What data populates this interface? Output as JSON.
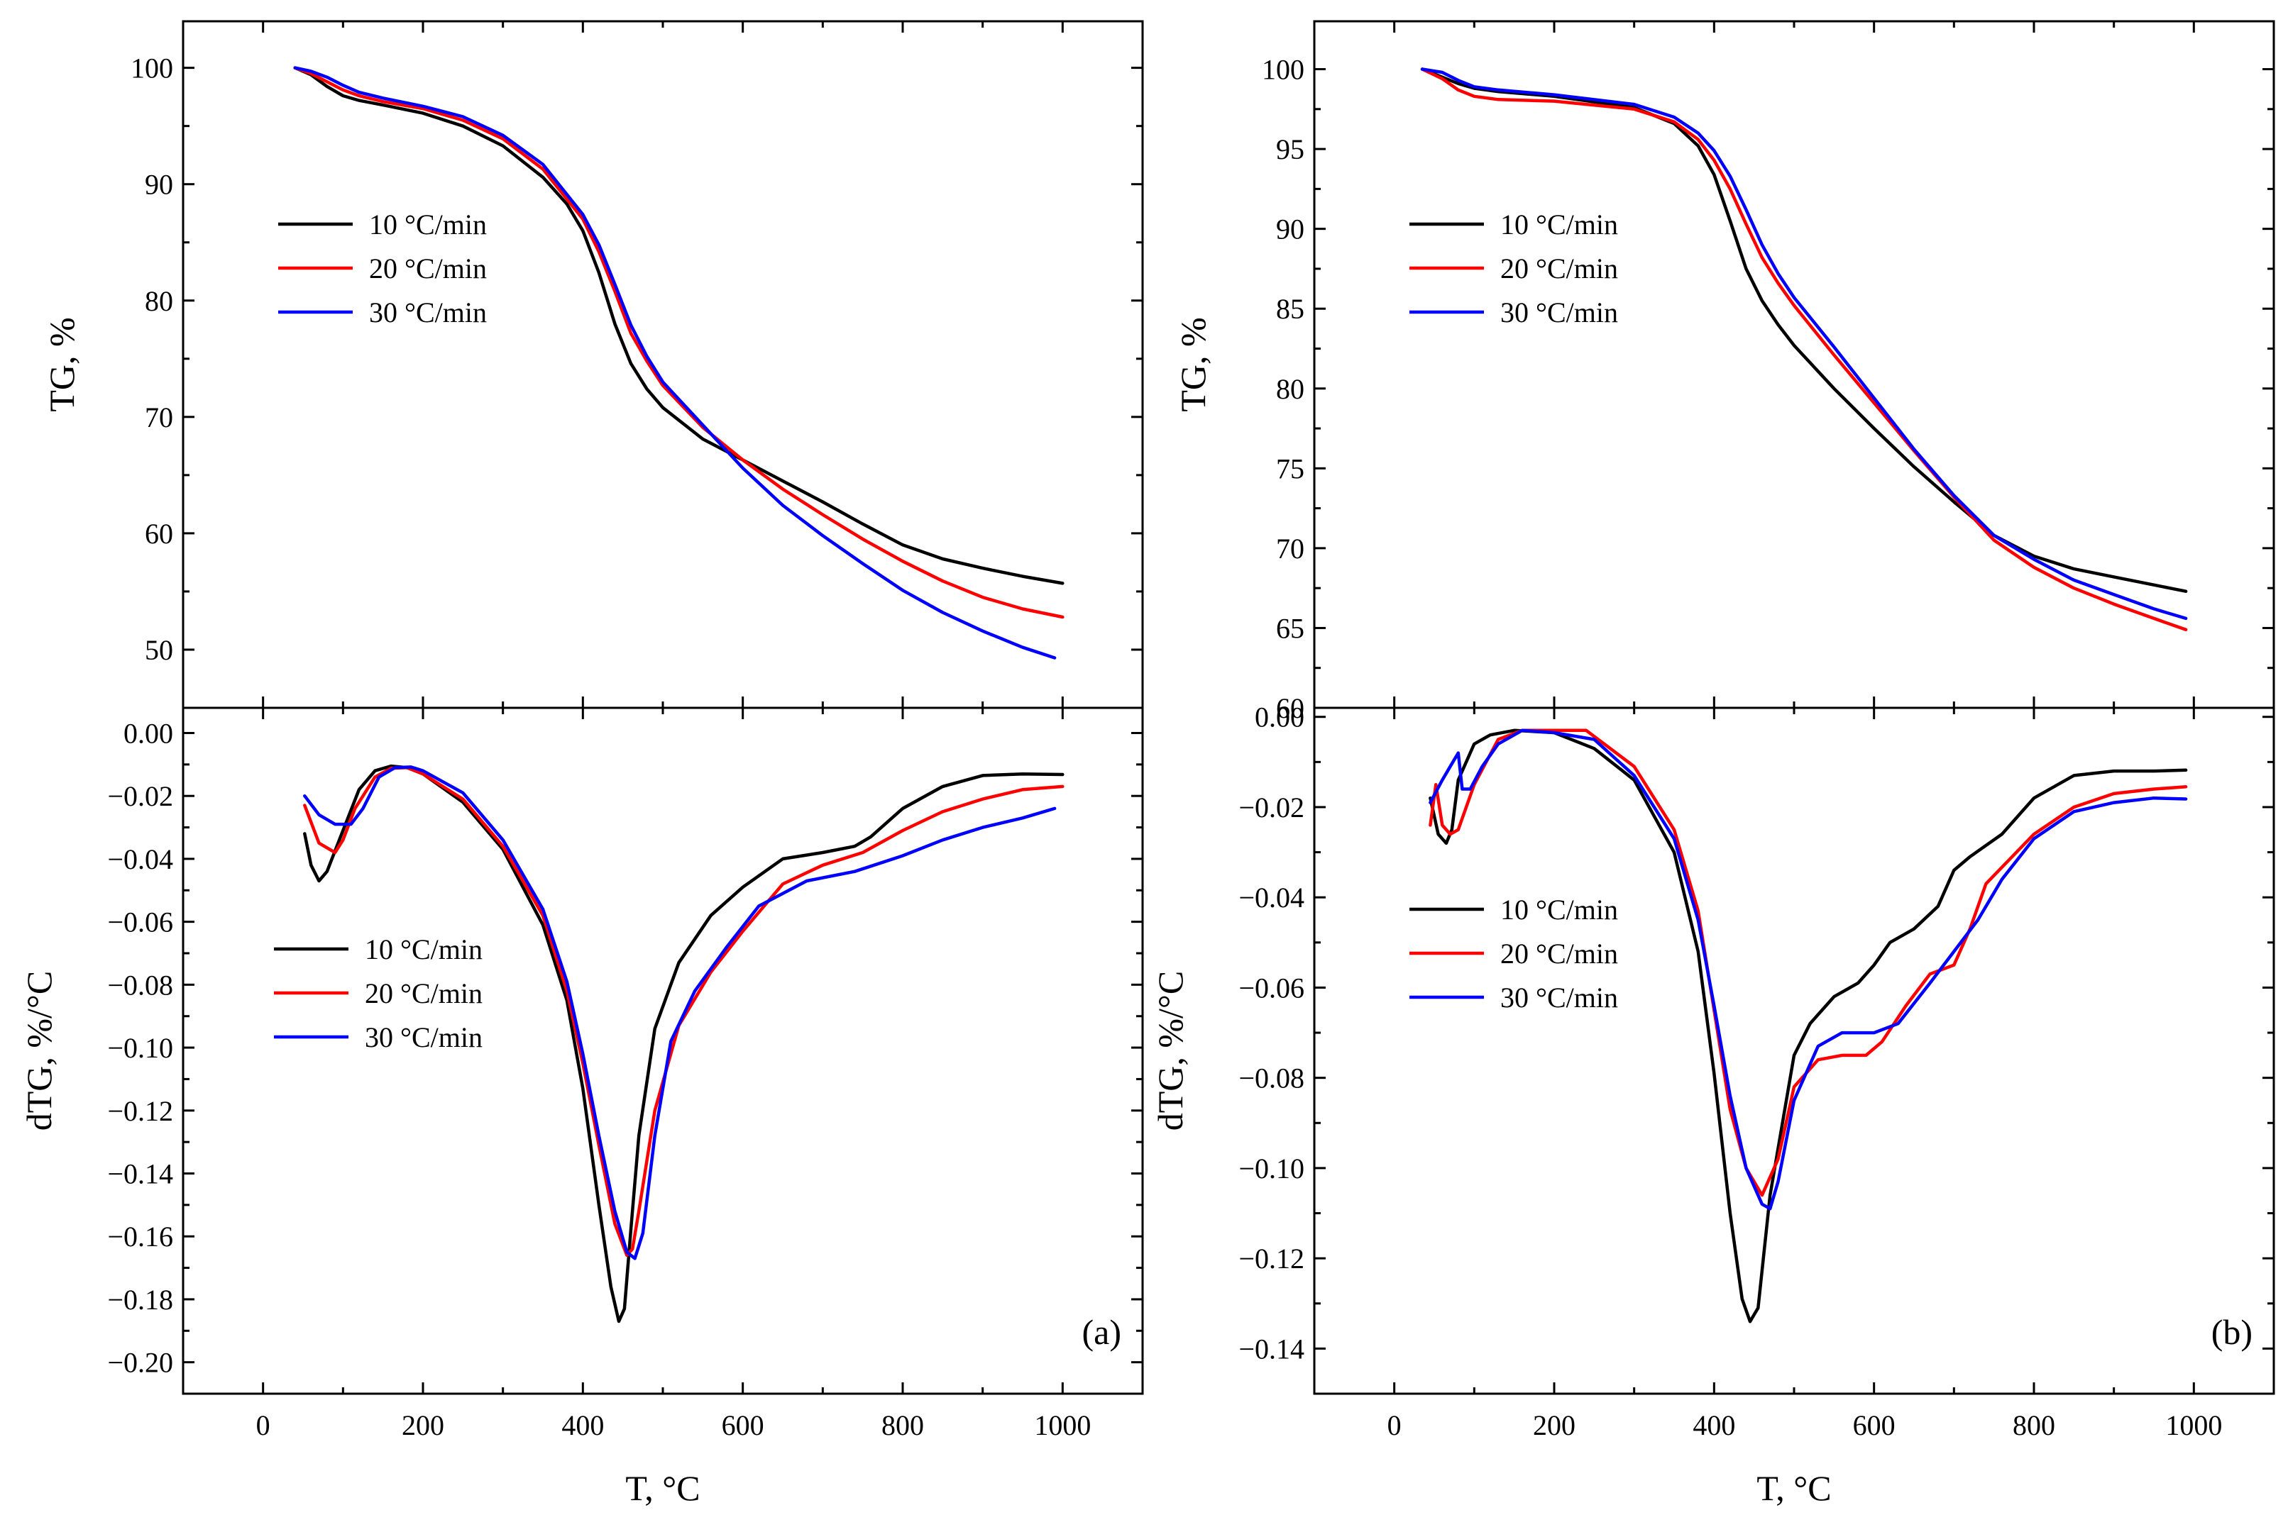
{
  "colors": {
    "s10": "#000000",
    "s20": "#ff0000",
    "s30": "#0000ff"
  },
  "chart_data": [
    {
      "panel": "a-top",
      "type": "line",
      "title": "",
      "xlabel": "",
      "ylabel": "TG, %",
      "xlim": [
        -100,
        1100
      ],
      "ylim": [
        45,
        104
      ],
      "xticks": [],
      "yticks": [
        50,
        60,
        70,
        80,
        90,
        100
      ],
      "legend_position": "upper-left",
      "panel_label": "",
      "series": [
        {
          "name": "10 °C/min",
          "color": "#000000",
          "x": [
            40,
            60,
            80,
            100,
            120,
            150,
            200,
            250,
            300,
            350,
            380,
            400,
            420,
            440,
            460,
            480,
            500,
            550,
            600,
            650,
            700,
            750,
            800,
            850,
            900,
            950,
            1000
          ],
          "y": [
            100,
            99.4,
            98.4,
            97.6,
            97.2,
            96.8,
            96.1,
            95,
            93.3,
            90.6,
            88.3,
            86,
            82.4,
            78,
            74.6,
            72.4,
            70.8,
            68.1,
            66.3,
            64.5,
            62.7,
            60.8,
            59,
            57.8,
            57,
            56.3,
            55.7
          ]
        },
        {
          "name": "20 °C/min",
          "color": "#ff0000",
          "x": [
            40,
            60,
            80,
            100,
            120,
            150,
            200,
            250,
            300,
            350,
            400,
            420,
            440,
            460,
            480,
            500,
            550,
            600,
            650,
            700,
            750,
            800,
            850,
            900,
            950,
            1000
          ],
          "y": [
            100,
            99.5,
            98.8,
            98.1,
            97.6,
            97.1,
            96.5,
            95.5,
            93.9,
            91.3,
            87,
            84.2,
            80.8,
            77.2,
            74.8,
            72.7,
            69.1,
            66.3,
            63.8,
            61.6,
            59.5,
            57.6,
            55.9,
            54.5,
            53.5,
            52.8
          ]
        },
        {
          "name": "30 °C/min",
          "color": "#0000ff",
          "x": [
            40,
            60,
            80,
            100,
            120,
            150,
            200,
            250,
            300,
            350,
            400,
            420,
            440,
            460,
            480,
            500,
            550,
            600,
            650,
            700,
            750,
            800,
            850,
            900,
            950,
            990
          ],
          "y": [
            100,
            99.7,
            99.2,
            98.5,
            97.9,
            97.4,
            96.7,
            95.8,
            94.2,
            91.7,
            87.4,
            84.8,
            81.4,
            77.9,
            75.2,
            73,
            69.3,
            65.6,
            62.4,
            59.8,
            57.4,
            55.1,
            53.2,
            51.6,
            50.2,
            49.3
          ]
        }
      ]
    },
    {
      "panel": "a-bottom",
      "type": "line",
      "title": "",
      "xlabel": "T, °C",
      "ylabel": "dTG, %/°C",
      "xlim": [
        -100,
        1100
      ],
      "ylim": [
        -0.21,
        0.008
      ],
      "xticks": [
        0,
        200,
        400,
        600,
        800,
        1000
      ],
      "yticks": [
        0.0,
        -0.02,
        -0.04,
        -0.06,
        -0.08,
        -0.1,
        -0.12,
        -0.14,
        -0.16,
        -0.18,
        -0.2
      ],
      "ytick_labels": [
        "0.00",
        "−0.02",
        "−0.04",
        "−0.06",
        "−0.08",
        "−0.10",
        "−0.12",
        "−0.14",
        "−0.16",
        "−0.18",
        "−0.20"
      ],
      "legend_position": "middle-left",
      "panel_label": "(a)",
      "series": [
        {
          "name": "10 °C/min",
          "color": "#000000",
          "x": [
            52,
            60,
            70,
            80,
            100,
            120,
            140,
            160,
            180,
            200,
            250,
            300,
            350,
            380,
            400,
            420,
            435,
            445,
            452,
            460,
            470,
            490,
            520,
            560,
            600,
            650,
            700,
            740,
            760,
            800,
            850,
            900,
            950,
            1000
          ],
          "y": [
            -0.032,
            -0.042,
            -0.047,
            -0.044,
            -0.031,
            -0.018,
            -0.012,
            -0.0105,
            -0.011,
            -0.013,
            -0.022,
            -0.037,
            -0.061,
            -0.085,
            -0.113,
            -0.15,
            -0.176,
            -0.187,
            -0.183,
            -0.158,
            -0.128,
            -0.094,
            -0.073,
            -0.058,
            -0.049,
            -0.04,
            -0.038,
            -0.036,
            -0.033,
            -0.024,
            -0.017,
            -0.0135,
            -0.013,
            -0.0132
          ]
        },
        {
          "name": "20 °C/min",
          "color": "#ff0000",
          "x": [
            52,
            70,
            90,
            100,
            115,
            140,
            160,
            180,
            200,
            250,
            300,
            350,
            380,
            400,
            420,
            440,
            455,
            462,
            470,
            490,
            520,
            560,
            600,
            650,
            700,
            750,
            800,
            850,
            900,
            950,
            1000
          ],
          "y": [
            -0.023,
            -0.035,
            -0.038,
            -0.034,
            -0.024,
            -0.014,
            -0.0112,
            -0.011,
            -0.013,
            -0.021,
            -0.036,
            -0.058,
            -0.082,
            -0.105,
            -0.131,
            -0.156,
            -0.166,
            -0.164,
            -0.152,
            -0.12,
            -0.093,
            -0.076,
            -0.063,
            -0.048,
            -0.042,
            -0.038,
            -0.031,
            -0.025,
            -0.021,
            -0.018,
            -0.017
          ]
        },
        {
          "name": "30 °C/min",
          "color": "#0000ff",
          "x": [
            52,
            70,
            90,
            110,
            125,
            145,
            165,
            185,
            200,
            250,
            300,
            350,
            380,
            400,
            420,
            440,
            455,
            465,
            475,
            490,
            510,
            540,
            580,
            620,
            680,
            740,
            800,
            850,
            900,
            950,
            990
          ],
          "y": [
            -0.02,
            -0.026,
            -0.029,
            -0.029,
            -0.024,
            -0.014,
            -0.011,
            -0.0108,
            -0.012,
            -0.019,
            -0.034,
            -0.056,
            -0.079,
            -0.102,
            -0.128,
            -0.152,
            -0.165,
            -0.167,
            -0.159,
            -0.128,
            -0.098,
            -0.082,
            -0.068,
            -0.055,
            -0.047,
            -0.044,
            -0.039,
            -0.034,
            -0.03,
            -0.027,
            -0.024
          ]
        }
      ]
    },
    {
      "panel": "b-top",
      "type": "line",
      "title": "",
      "xlabel": "",
      "ylabel": "TG, %",
      "xlim": [
        -100,
        1100
      ],
      "ylim": [
        60,
        103
      ],
      "xticks": [],
      "yticks": [
        60,
        65,
        70,
        75,
        80,
        85,
        90,
        95,
        100
      ],
      "legend_position": "upper-left",
      "panel_label": "",
      "series": [
        {
          "name": "10 °C/min",
          "color": "#000000",
          "x": [
            35,
            60,
            80,
            100,
            130,
            200,
            300,
            350,
            380,
            400,
            420,
            440,
            460,
            480,
            500,
            550,
            600,
            650,
            700,
            750,
            800,
            850,
            900,
            950,
            990
          ],
          "y": [
            100,
            99.5,
            99.1,
            98.8,
            98.6,
            98.3,
            97.6,
            96.6,
            95.2,
            93.4,
            90.5,
            87.5,
            85.5,
            84,
            82.7,
            80,
            77.5,
            75.1,
            72.9,
            70.8,
            69.5,
            68.7,
            68.2,
            67.7,
            67.3
          ]
        },
        {
          "name": "20 °C/min",
          "color": "#ff0000",
          "x": [
            35,
            60,
            80,
            100,
            130,
            200,
            300,
            350,
            380,
            400,
            420,
            440,
            460,
            480,
            500,
            550,
            600,
            650,
            700,
            750,
            800,
            850,
            900,
            950,
            990
          ],
          "y": [
            100,
            99.4,
            98.7,
            98.3,
            98.1,
            98,
            97.5,
            96.7,
            95.6,
            94.3,
            92.5,
            90.3,
            88.2,
            86.6,
            85.2,
            82.1,
            79.1,
            76.1,
            73.2,
            70.5,
            68.8,
            67.5,
            66.5,
            65.6,
            64.9
          ]
        },
        {
          "name": "30 °C/min",
          "color": "#0000ff",
          "x": [
            35,
            60,
            80,
            100,
            130,
            200,
            300,
            350,
            380,
            400,
            420,
            440,
            460,
            480,
            500,
            550,
            600,
            650,
            700,
            750,
            800,
            850,
            900,
            950,
            990
          ],
          "y": [
            100,
            99.8,
            99.3,
            98.9,
            98.7,
            98.4,
            97.8,
            97,
            96,
            94.9,
            93.3,
            91.2,
            89,
            87.2,
            85.7,
            82.6,
            79.4,
            76.2,
            73.3,
            70.8,
            69.3,
            68,
            67.1,
            66.2,
            65.6
          ]
        }
      ]
    },
    {
      "panel": "b-bottom",
      "type": "line",
      "title": "",
      "xlabel": "T, °C",
      "ylabel": "dTG, %/°C",
      "xlim": [
        -100,
        1100
      ],
      "ylim": [
        -0.15,
        0.002
      ],
      "xticks": [
        0,
        200,
        400,
        600,
        800,
        1000
      ],
      "yticks": [
        0.0,
        -0.02,
        -0.04,
        -0.06,
        -0.08,
        -0.1,
        -0.12,
        -0.14
      ],
      "ytick_labels": [
        "0.00",
        "−0.02",
        "−0.04",
        "−0.06",
        "−0.08",
        "−0.10",
        "−0.12",
        "−0.14"
      ],
      "legend_position": "middle-left",
      "panel_label": "(b)",
      "series": [
        {
          "name": "10 °C/min",
          "color": "#000000",
          "x": [
            45,
            55,
            65,
            72,
            80,
            100,
            120,
            150,
            200,
            250,
            300,
            350,
            380,
            400,
            420,
            435,
            445,
            455,
            470,
            500,
            520,
            550,
            580,
            600,
            620,
            650,
            680,
            700,
            720,
            760,
            800,
            850,
            900,
            950,
            990
          ],
          "y": [
            -0.018,
            -0.026,
            -0.028,
            -0.025,
            -0.014,
            -0.006,
            -0.004,
            -0.003,
            -0.0035,
            -0.007,
            -0.014,
            -0.03,
            -0.052,
            -0.079,
            -0.11,
            -0.129,
            -0.134,
            -0.131,
            -0.106,
            -0.075,
            -0.068,
            -0.062,
            -0.059,
            -0.055,
            -0.05,
            -0.047,
            -0.042,
            -0.034,
            -0.031,
            -0.026,
            -0.018,
            -0.013,
            -0.012,
            -0.012,
            -0.0118
          ]
        },
        {
          "name": "20 °C/min",
          "color": "#ff0000",
          "x": [
            45,
            52,
            60,
            70,
            80,
            100,
            130,
            160,
            200,
            240,
            300,
            350,
            380,
            400,
            420,
            440,
            460,
            480,
            500,
            530,
            560,
            590,
            610,
            640,
            670,
            700,
            720,
            740,
            800,
            850,
            900,
            950,
            990
          ],
          "y": [
            -0.024,
            -0.015,
            -0.024,
            -0.026,
            -0.025,
            -0.015,
            -0.005,
            -0.003,
            -0.003,
            -0.003,
            -0.011,
            -0.025,
            -0.043,
            -0.065,
            -0.087,
            -0.1,
            -0.106,
            -0.098,
            -0.082,
            -0.076,
            -0.075,
            -0.075,
            -0.072,
            -0.064,
            -0.057,
            -0.055,
            -0.047,
            -0.037,
            -0.026,
            -0.02,
            -0.017,
            -0.016,
            -0.0155
          ]
        },
        {
          "name": "30 °C/min",
          "color": "#0000ff",
          "x": [
            45,
            60,
            70,
            80,
            85,
            95,
            110,
            130,
            160,
            200,
            250,
            300,
            350,
            380,
            400,
            420,
            440,
            460,
            470,
            480,
            500,
            530,
            560,
            600,
            630,
            670,
            700,
            730,
            760,
            800,
            850,
            900,
            950,
            990
          ],
          "y": [
            -0.019,
            -0.014,
            -0.011,
            -0.008,
            -0.016,
            -0.016,
            -0.011,
            -0.006,
            -0.003,
            -0.0035,
            -0.005,
            -0.013,
            -0.027,
            -0.045,
            -0.064,
            -0.084,
            -0.1,
            -0.108,
            -0.109,
            -0.103,
            -0.085,
            -0.073,
            -0.07,
            -0.07,
            -0.068,
            -0.059,
            -0.052,
            -0.045,
            -0.036,
            -0.027,
            -0.021,
            -0.019,
            -0.018,
            -0.0182
          ]
        }
      ]
    }
  ]
}
